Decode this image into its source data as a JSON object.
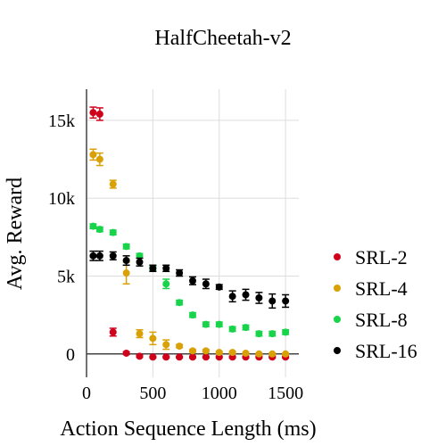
{
  "chart_data": {
    "type": "scatter",
    "title": "HalfCheetah-v2",
    "xlabel": "Action Sequence Length (ms)",
    "ylabel": "Avg. Reward",
    "xlim": [
      0,
      1600
    ],
    "ylim": [
      -1500,
      17000
    ],
    "x_ticks": [
      0,
      500,
      1000,
      1500
    ],
    "x_tick_labels": [
      "0",
      "500",
      "1000",
      "1500"
    ],
    "y_ticks": [
      0,
      5000,
      10000,
      15000
    ],
    "y_tick_labels": [
      "0",
      "5k",
      "10k",
      "15k"
    ],
    "grid": true,
    "legend_position": "right",
    "series": [
      {
        "name": "SRL-2",
        "color": "#d0021b",
        "x": [
          50,
          100,
          200,
          300,
          400,
          500,
          600,
          700,
          800,
          900,
          1000,
          1100,
          1200,
          1300,
          1400,
          1500
        ],
        "y": [
          15500,
          15400,
          1400,
          50,
          -150,
          -200,
          -200,
          -200,
          -200,
          -200,
          -200,
          -200,
          -200,
          -200,
          -200,
          -200
        ],
        "err": [
          350,
          400,
          250,
          80,
          60,
          50,
          50,
          50,
          50,
          50,
          50,
          50,
          50,
          50,
          50,
          50
        ]
      },
      {
        "name": "SRL-4",
        "color": "#d9a106",
        "x": [
          50,
          100,
          200,
          300,
          400,
          500,
          600,
          700,
          800,
          900,
          1000,
          1100,
          1200,
          1300,
          1400,
          1500
        ],
        "y": [
          12800,
          12500,
          10900,
          5200,
          1300,
          1000,
          600,
          500,
          200,
          200,
          100,
          100,
          50,
          0,
          0,
          0
        ],
        "err": [
          350,
          400,
          250,
          700,
          250,
          400,
          300,
          100,
          80,
          80,
          60,
          60,
          50,
          50,
          50,
          50
        ]
      },
      {
        "name": "SRL-8",
        "color": "#17d44a",
        "x": [
          50,
          100,
          200,
          300,
          400,
          500,
          600,
          700,
          800,
          900,
          1000,
          1100,
          1200,
          1300,
          1400,
          1500
        ],
        "y": [
          8200,
          8000,
          7800,
          6900,
          6300,
          5500,
          4500,
          3300,
          2500,
          1900,
          1900,
          1600,
          1700,
          1300,
          1300,
          1400
        ],
        "err": [
          150,
          150,
          150,
          150,
          150,
          150,
          300,
          150,
          150,
          150,
          150,
          150,
          150,
          150,
          150,
          150
        ]
      },
      {
        "name": "SRL-16",
        "color": "#000000",
        "x": [
          50,
          100,
          200,
          300,
          400,
          500,
          600,
          700,
          800,
          900,
          1000,
          1100,
          1200,
          1300,
          1400,
          1500
        ],
        "y": [
          6300,
          6300,
          6300,
          6000,
          5900,
          5500,
          5500,
          5200,
          4700,
          4500,
          4300,
          3700,
          3800,
          3600,
          3400,
          3400
        ],
        "err": [
          300,
          300,
          250,
          300,
          250,
          200,
          200,
          200,
          250,
          300,
          150,
          350,
          350,
          350,
          450,
          400
        ]
      }
    ]
  }
}
